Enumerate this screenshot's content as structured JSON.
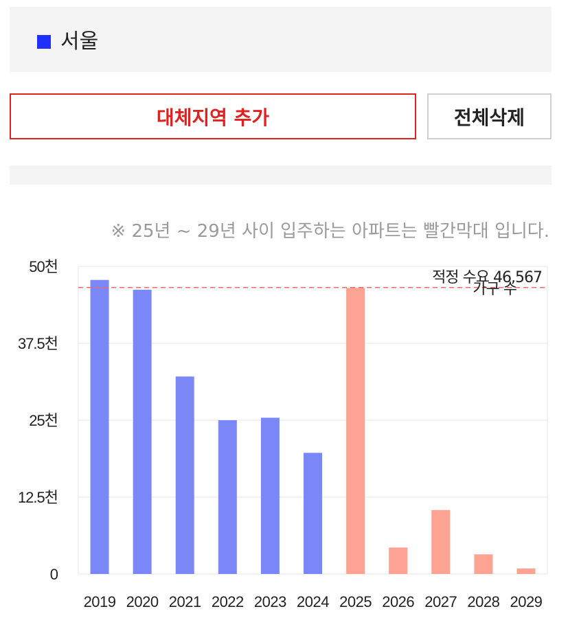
{
  "region_list": {
    "items": [
      {
        "label": "서울",
        "color": "#1f2fff"
      }
    ]
  },
  "actions": {
    "add_label": "대체지역 추가",
    "delete_label": "전체삭제"
  },
  "chart_note": "※ 25년 ~ 29년 사이 입주하는 아파트는 빨간막대 입니다.",
  "chart_data": {
    "type": "bar",
    "categories": [
      "2019",
      "2020",
      "2021",
      "2022",
      "2023",
      "2024",
      "2025",
      "2026",
      "2027",
      "2028",
      "2029"
    ],
    "values": [
      47800,
      46200,
      32100,
      25000,
      25400,
      19700,
      46500,
      4300,
      10400,
      3200,
      900
    ],
    "series_colors": [
      "#7b87f7",
      "#7b87f7",
      "#7b87f7",
      "#7b87f7",
      "#7b87f7",
      "#7b87f7",
      "#fda393",
      "#fda393",
      "#fda393",
      "#fda393",
      "#fda393"
    ],
    "ylim": [
      0,
      50000
    ],
    "y_ticks": [
      {
        "value": 0,
        "label": "0"
      },
      {
        "value": 12500,
        "label": "12.5천"
      },
      {
        "value": 25000,
        "label": "25천"
      },
      {
        "value": 37500,
        "label": "37.5천"
      },
      {
        "value": 50000,
        "label": "50천"
      }
    ],
    "grid": true,
    "reference_line": {
      "value": 46567,
      "label_line1": "적정 수요 46,567",
      "label_line2": "가구 수",
      "color": "#ef6a6a"
    }
  }
}
